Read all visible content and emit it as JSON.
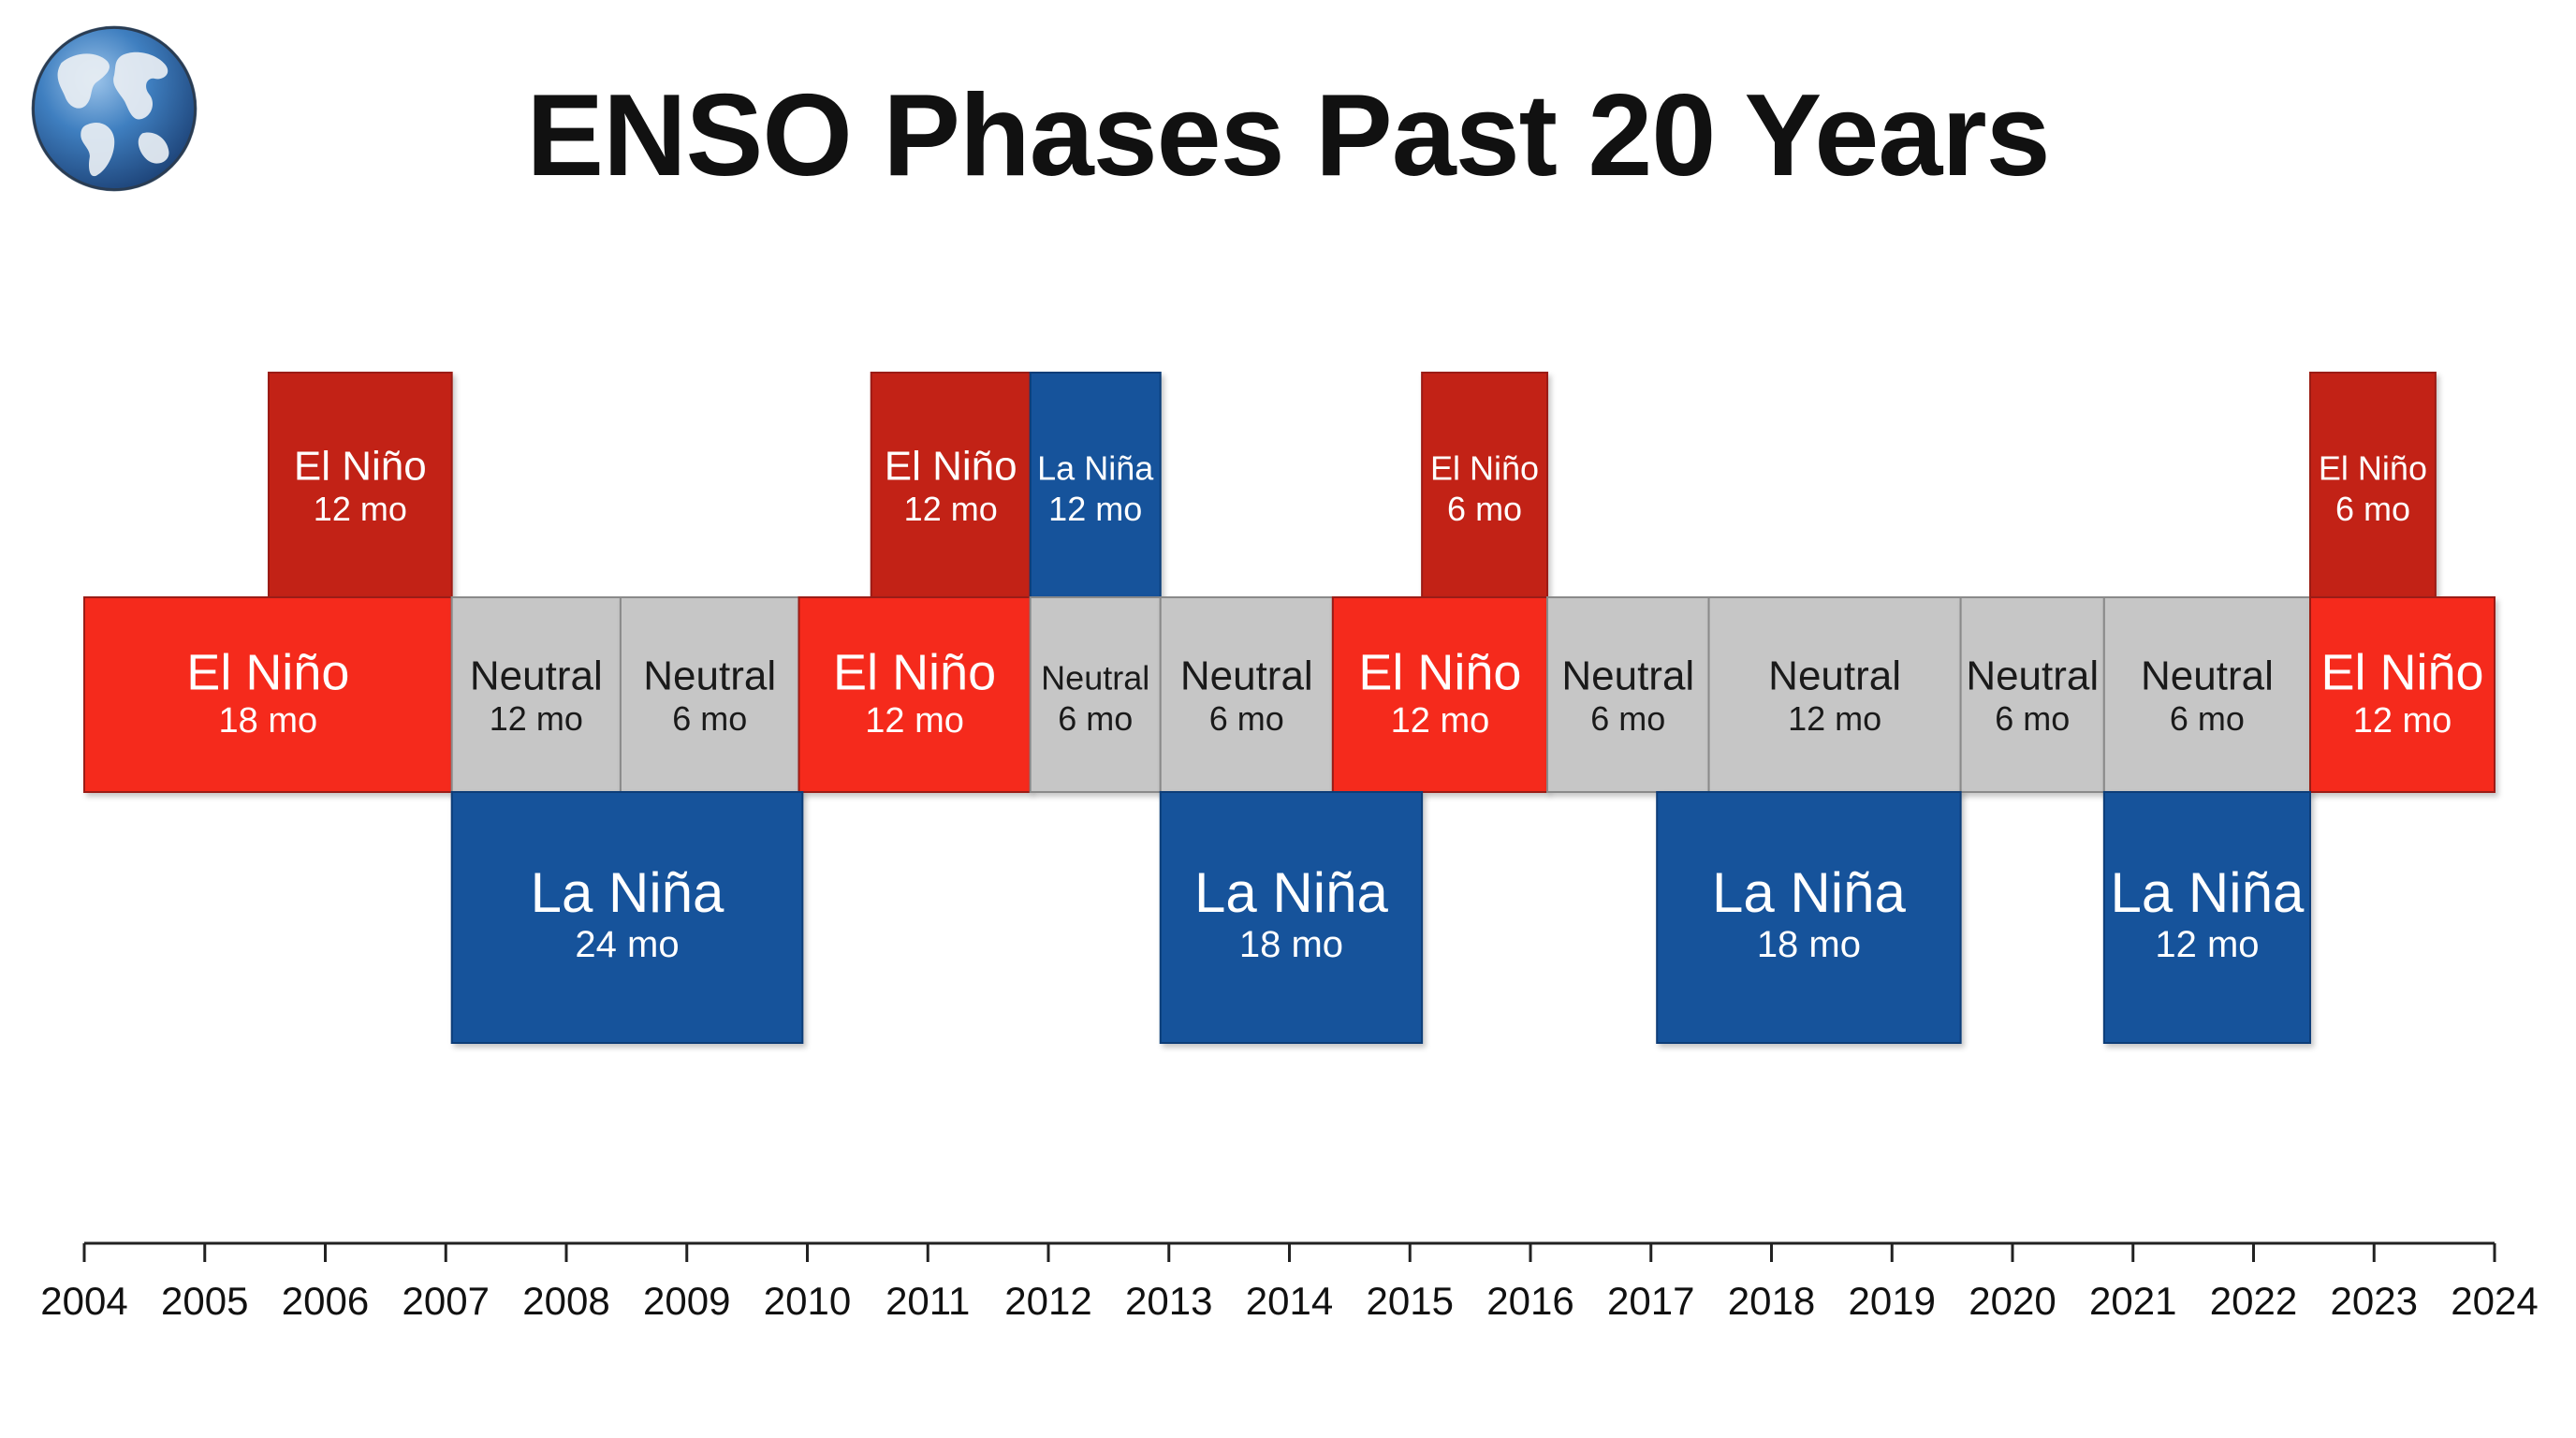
{
  "title": "ENSO Phases Past 20 Years",
  "colors": {
    "el_nino": "#f52a1c",
    "el_nino_dark": "#c22218",
    "la_nina": "#14539b",
    "neutral": "#c6c6c6",
    "title": "#111111"
  },
  "icons": {
    "logo": "globe-icon"
  },
  "chart_data": {
    "type": "timeline",
    "title": "ENSO Phases Past 20 Years",
    "xlabel": "",
    "ylabel": "",
    "xlim": [
      2004,
      2024
    ],
    "ticks": [
      "2004",
      "2005",
      "2006",
      "2007",
      "2008",
      "2009",
      "2010",
      "2011",
      "2012",
      "2013",
      "2014",
      "2015",
      "2016",
      "2017",
      "2018",
      "2019",
      "2020",
      "2021",
      "2022",
      "2023",
      "2024"
    ],
    "grid": false,
    "legend": "none",
    "blocks": [
      {
        "row": "top",
        "phase": "el_nino_dark",
        "label": "El Niño",
        "duration": "12 mo",
        "start": 2005.53,
        "end": 2007.05
      },
      {
        "row": "top",
        "phase": "el_nino_dark",
        "label": "El Niño",
        "duration": "12 mo",
        "start": 2010.53,
        "end": 2011.85
      },
      {
        "row": "top",
        "phase": "la_nina",
        "label": "La Niña",
        "duration": "12 mo",
        "start": 2011.85,
        "end": 2012.93
      },
      {
        "row": "top",
        "phase": "el_nino_dark",
        "label": "El Niño",
        "duration": "6 mo",
        "start": 2015.1,
        "end": 2016.14
      },
      {
        "row": "top",
        "phase": "el_nino_dark",
        "label": "El Niño",
        "duration": "6 mo",
        "start": 2022.47,
        "end": 2023.51
      },
      {
        "row": "middle",
        "phase": "el_nino",
        "label": "El Niño",
        "duration": "18 mo",
        "start": 2004.0,
        "end": 2007.05
      },
      {
        "row": "middle",
        "phase": "neutral",
        "label": "Neutral",
        "duration": "12 mo",
        "start": 2007.05,
        "end": 2008.45
      },
      {
        "row": "middle",
        "phase": "neutral",
        "label": "Neutral",
        "duration": "6 mo",
        "start": 2008.45,
        "end": 2009.93
      },
      {
        "row": "middle",
        "phase": "el_nino",
        "label": "El Niño",
        "duration": "12 mo",
        "start": 2009.93,
        "end": 2011.85
      },
      {
        "row": "middle",
        "phase": "neutral",
        "label": "Neutral",
        "duration": "6 mo",
        "start": 2011.85,
        "end": 2012.93
      },
      {
        "row": "middle",
        "phase": "neutral",
        "label": "Neutral",
        "duration": "6 mo",
        "start": 2012.93,
        "end": 2014.36
      },
      {
        "row": "middle",
        "phase": "el_nino",
        "label": "El Niño",
        "duration": "12 mo",
        "start": 2014.36,
        "end": 2016.14
      },
      {
        "row": "middle",
        "phase": "neutral",
        "label": "Neutral",
        "duration": "6 mo",
        "start": 2016.14,
        "end": 2017.48
      },
      {
        "row": "middle",
        "phase": "neutral",
        "label": "Neutral",
        "duration": "12 mo",
        "start": 2017.48,
        "end": 2019.57
      },
      {
        "row": "middle",
        "phase": "neutral",
        "label": "Neutral",
        "duration": "6 mo",
        "start": 2019.57,
        "end": 2020.76
      },
      {
        "row": "middle",
        "phase": "neutral",
        "label": "Neutral",
        "duration": "6 mo",
        "start": 2020.76,
        "end": 2022.47
      },
      {
        "row": "middle",
        "phase": "el_nino",
        "label": "El Niño",
        "duration": "12 mo",
        "start": 2022.47,
        "end": 2024.0
      },
      {
        "row": "bottom",
        "phase": "la_nina",
        "label": "La Niña",
        "duration": "24 mo",
        "start": 2007.05,
        "end": 2009.96
      },
      {
        "row": "bottom",
        "phase": "la_nina",
        "label": "La Niña",
        "duration": "18 mo",
        "start": 2012.93,
        "end": 2015.1
      },
      {
        "row": "bottom",
        "phase": "la_nina",
        "label": "La Niña",
        "duration": "18 mo",
        "start": 2017.05,
        "end": 2019.57
      },
      {
        "row": "bottom",
        "phase": "la_nina",
        "label": "La Niña",
        "duration": "12 mo",
        "start": 2020.76,
        "end": 2022.47
      }
    ]
  }
}
